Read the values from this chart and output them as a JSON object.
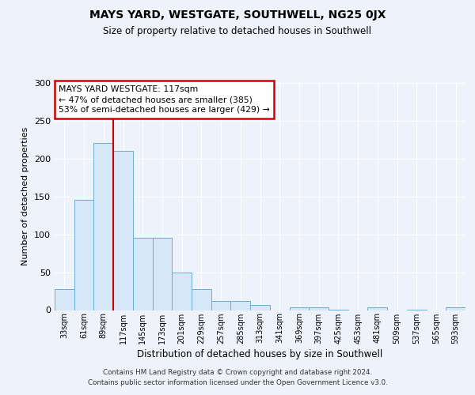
{
  "title": "MAYS YARD, WESTGATE, SOUTHWELL, NG25 0JX",
  "subtitle": "Size of property relative to detached houses in Southwell",
  "xlabel": "Distribution of detached houses by size in Southwell",
  "ylabel": "Number of detached properties",
  "bar_labels": [
    "33sqm",
    "61sqm",
    "89sqm",
    "117sqm",
    "145sqm",
    "173sqm",
    "201sqm",
    "229sqm",
    "257sqm",
    "285sqm",
    "313sqm",
    "341sqm",
    "369sqm",
    "397sqm",
    "425sqm",
    "453sqm",
    "481sqm",
    "509sqm",
    "537sqm",
    "565sqm",
    "593sqm"
  ],
  "bar_values": [
    28,
    146,
    221,
    210,
    95,
    95,
    50,
    28,
    12,
    12,
    7,
    0,
    4,
    4,
    1,
    0,
    4,
    0,
    1,
    0,
    4
  ],
  "bar_color": "#d6e8f7",
  "bar_edge_color": "#6aaed6",
  "vline_x_idx": 3,
  "vline_color": "#cc0000",
  "annotation_title": "MAYS YARD WESTGATE: 117sqm",
  "annotation_line1": "← 47% of detached houses are smaller (385)",
  "annotation_line2": "53% of semi-detached houses are larger (429) →",
  "annotation_box_color": "#ffffff",
  "annotation_box_edge": "#cc0000",
  "ylim": [
    0,
    300
  ],
  "yticks": [
    0,
    50,
    100,
    150,
    200,
    250,
    300
  ],
  "background_color": "#eef2fb",
  "plot_background": "#eef2fb",
  "footer1": "Contains HM Land Registry data © Crown copyright and database right 2024.",
  "footer2": "Contains public sector information licensed under the Open Government Licence v3.0."
}
